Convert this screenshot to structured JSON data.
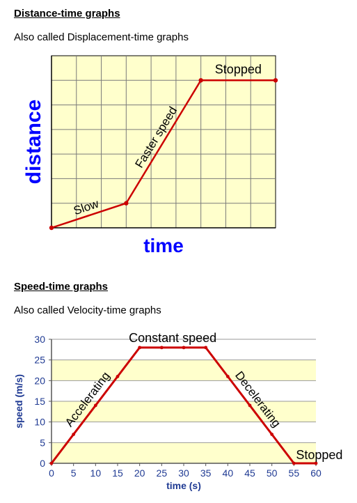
{
  "section1": {
    "heading": "Distance-time graphs",
    "subtitle": "Also called Displacement-time graphs"
  },
  "section2": {
    "heading": "Speed-time graphs",
    "subtitle": "Also called Velocity-time graphs"
  },
  "colors": {
    "plot_bg": "#ffffcc",
    "grid": "#7a7a7a",
    "line": "#cc0000",
    "axis_label_blue": "#0000ff",
    "axis_label_navy": "#1f3a93"
  },
  "chart_data": [
    {
      "type": "line",
      "xlabel": "time",
      "ylabel": "distance",
      "grid": true,
      "x_ticks_shown": false,
      "y_ticks_shown": false,
      "xlim": [
        0,
        9
      ],
      "ylim": [
        0,
        7
      ],
      "points": [
        [
          0,
          0
        ],
        [
          3,
          1
        ],
        [
          6,
          6
        ],
        [
          9,
          6
        ]
      ],
      "annotations": [
        {
          "text": "Slow",
          "segment": 0
        },
        {
          "text": "Faster speed",
          "segment": 1
        },
        {
          "text": "Stopped",
          "segment": 2
        }
      ]
    },
    {
      "type": "line",
      "xlabel": "time (s)",
      "ylabel": "speed (m/s)",
      "grid": true,
      "xlim": [
        0,
        60
      ],
      "ylim": [
        0,
        30
      ],
      "x_ticks": [
        0,
        5,
        10,
        15,
        20,
        25,
        30,
        35,
        40,
        45,
        50,
        55,
        60
      ],
      "y_ticks": [
        0,
        5,
        10,
        15,
        20,
        25,
        30
      ],
      "x": [
        0,
        5,
        10,
        15,
        20,
        25,
        30,
        35,
        40,
        45,
        50,
        55,
        60
      ],
      "y": [
        0,
        7,
        14,
        21,
        28,
        28,
        28,
        28,
        21,
        14,
        7,
        0,
        0
      ],
      "annotations": [
        {
          "text": "Accelerating",
          "segment": 0
        },
        {
          "text": "Constant speed",
          "segment": 1
        },
        {
          "text": "Decelerating",
          "segment": 2
        },
        {
          "text": "Stopped",
          "segment": 3
        }
      ]
    }
  ]
}
